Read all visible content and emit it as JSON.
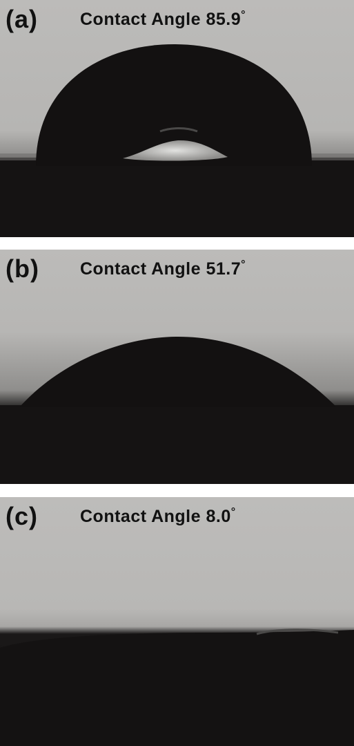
{
  "panels": [
    {
      "letter": "(a)",
      "caption": "Contact Angle 85.9",
      "degree": "°"
    },
    {
      "letter": "(b)",
      "caption": "Contact Angle 51.7",
      "degree": "°"
    },
    {
      "letter": "(c)",
      "caption": "Contact Angle 8.0",
      "degree": "°"
    }
  ],
  "colors": {
    "background_gray": "#b9b8b6",
    "droplet_black": "#141212",
    "highlight": "#dcdcda"
  }
}
